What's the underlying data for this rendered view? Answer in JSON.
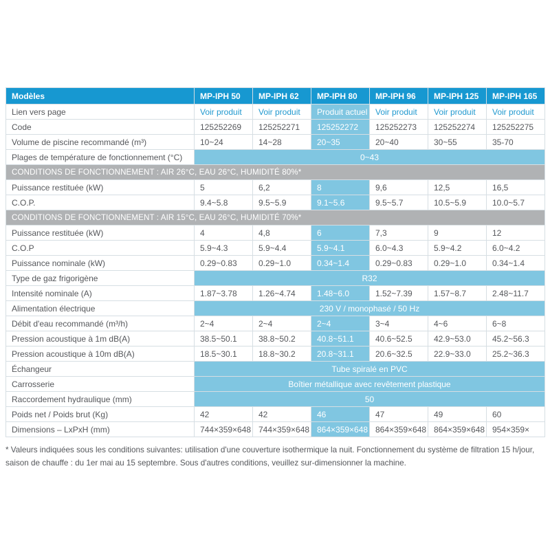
{
  "theme": {
    "header_bg": "#1798d1",
    "highlight_bg": "#80c6e1",
    "section_bg": "#b0b2b4",
    "link_color": "#2199cf",
    "text_color": "#55575b",
    "border_color": "#d6dee3"
  },
  "table": {
    "header": {
      "label": "Modèles",
      "models": [
        "MP-IPH 50",
        "MP-IPH 62",
        "MP-IPH 80",
        "MP-IPH 96",
        "MP-IPH 125",
        "MP-IPH 165"
      ]
    },
    "current_model_index": 2,
    "rows": [
      {
        "type": "links",
        "label": "Lien vers page",
        "values": [
          "Voir produit",
          "Voir produit",
          "Produit actuel",
          "Voir produit",
          "Voir produit",
          "Voir produit"
        ]
      },
      {
        "type": "values",
        "label": "Code",
        "values": [
          "125252269",
          "125252271",
          "125252272",
          "125252273",
          "125252274",
          "125252275"
        ]
      },
      {
        "type": "values",
        "label": "Volume de piscine recommandé (m³)",
        "values": [
          "10~24",
          "14~28",
          "20~35",
          "20~40",
          "30~55",
          "35-70"
        ]
      },
      {
        "type": "span",
        "label": "Plages de température de fonctionnement (°C)",
        "value": "0~43"
      },
      {
        "type": "section",
        "label": "CONDITIONS DE FONCTIONNEMENT : AIR 26°C, EAU 26°C, HUMIDITÉ 80%*"
      },
      {
        "type": "values",
        "label": "Puissance restituée (kW)",
        "values": [
          "5",
          "6,2",
          "8",
          "9,6",
          "12,5",
          "16,5"
        ]
      },
      {
        "type": "values",
        "label": "C.O.P.",
        "values": [
          "9.4~5.8",
          "9.5~5.9",
          "9.1~5.6",
          "9.5~5.7",
          "10.5~5.9",
          "10.0~5.7"
        ]
      },
      {
        "type": "section",
        "label": "CONDITIONS DE FONCTIONNEMENT : AIR 15°C, EAU 26°C, HUMIDITÉ 70%*"
      },
      {
        "type": "values",
        "label": "Puissance restituée (kW)",
        "values": [
          "4",
          "4,8",
          "6",
          "7,3",
          "9",
          "12"
        ]
      },
      {
        "type": "values",
        "label": "C.O.P",
        "values": [
          "5.9~4.3",
          "5.9~4.4",
          "5.9~4.1",
          "6.0~4.3",
          "5.9~4.2",
          "6.0~4.2"
        ]
      },
      {
        "type": "values",
        "label": "Puissance nominale (kW)",
        "values": [
          "0.29~0.83",
          "0.29~1.0",
          "0.34~1.4",
          "0.29~0.83",
          "0.29~1.0",
          "0.34~1.4"
        ]
      },
      {
        "type": "span",
        "label": "Type de gaz frigorigène",
        "value": "R32"
      },
      {
        "type": "values",
        "label": "Intensité nominale (A)",
        "values": [
          "1.87~3.78",
          "1.26~4.74",
          "1.48~6.0",
          "1.52~7.39",
          "1.57~8.7",
          "2.48~11.7"
        ]
      },
      {
        "type": "span",
        "label": "Alimentation électrique",
        "value": "230 V / monophasé / 50 Hz"
      },
      {
        "type": "values",
        "label": "Débit d'eau recommandé (m³/h)",
        "values": [
          "2~4",
          "2~4",
          "2~4",
          "3~4",
          "4~6",
          "6~8"
        ]
      },
      {
        "type": "values",
        "label": "Pression acoustique à 1m dB(A)",
        "values": [
          "38.5~50.1",
          "38.8~50.2",
          "40.8~51.1",
          "40.6~52.5",
          "42.9~53.0",
          "45.2~56.3"
        ]
      },
      {
        "type": "values",
        "label": "Pression acoustique à 10m dB(A)",
        "values": [
          "18.5~30.1",
          "18.8~30.2",
          "20.8~31.1",
          "20.6~32.5",
          "22.9~33.0",
          "25.2~36.3"
        ]
      },
      {
        "type": "span",
        "label": "Échangeur",
        "value": "Tube spiralé en PVC"
      },
      {
        "type": "span",
        "label": "Carrosserie",
        "value": "Boîtier métallique avec revêtement plastique"
      },
      {
        "type": "span",
        "label": "Raccordement hydraulique (mm)",
        "value": "50"
      },
      {
        "type": "values",
        "label": "Poids net / Poids brut (Kg)",
        "values": [
          "42",
          "42",
          "46",
          "47",
          "49",
          "60"
        ]
      },
      {
        "type": "values",
        "label": "Dimensions – LxPxH (mm)",
        "values": [
          "744×359×648",
          "744×359×648",
          "864×359×648",
          "864×359×648",
          "864×359×648",
          "954×359×"
        ]
      }
    ]
  },
  "footnote": "* Valeurs indiquées sous les conditions suivantes: utilisation d'une couverture isothermique la nuit. Fonctionnement du système de filtration 15 h/jour, saison de chauffe : du 1er mai au 15 septembre. Sous d'autres conditions, veuillez sur-dimensionner la machine."
}
